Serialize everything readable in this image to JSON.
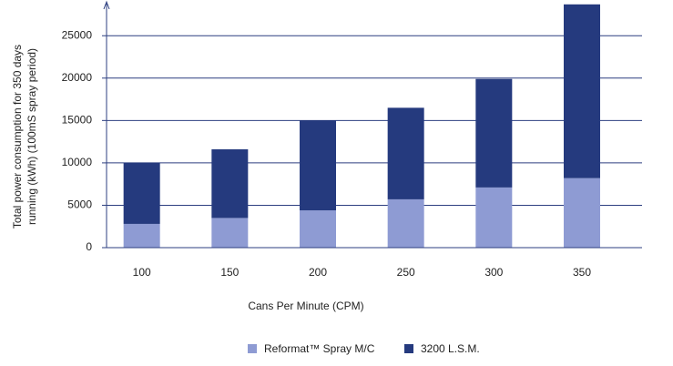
{
  "chart_data": {
    "type": "stacked_bar",
    "xlabel": "Cans Per Minute (CPM)",
    "ylabel": [
      "Total power consumption for 350 days",
      "running (kWh) (100mS spray period)"
    ],
    "categories": [
      "100",
      "150",
      "200",
      "250",
      "300",
      "350"
    ],
    "series": [
      {
        "name": "Reformat™ Spray M/C",
        "color": "#8e9bd3",
        "values": [
          2800,
          3500,
          4400,
          5700,
          7100,
          8200
        ]
      },
      {
        "name": "3200 L.S.M.",
        "color": "#253a7e",
        "values": [
          7200,
          8100,
          10600,
          10800,
          12800,
          20500
        ]
      }
    ],
    "ylim": [
      0,
      29000
    ],
    "yticks": [
      0,
      5000,
      10000,
      15000,
      20000,
      25000
    ],
    "grid": true
  }
}
